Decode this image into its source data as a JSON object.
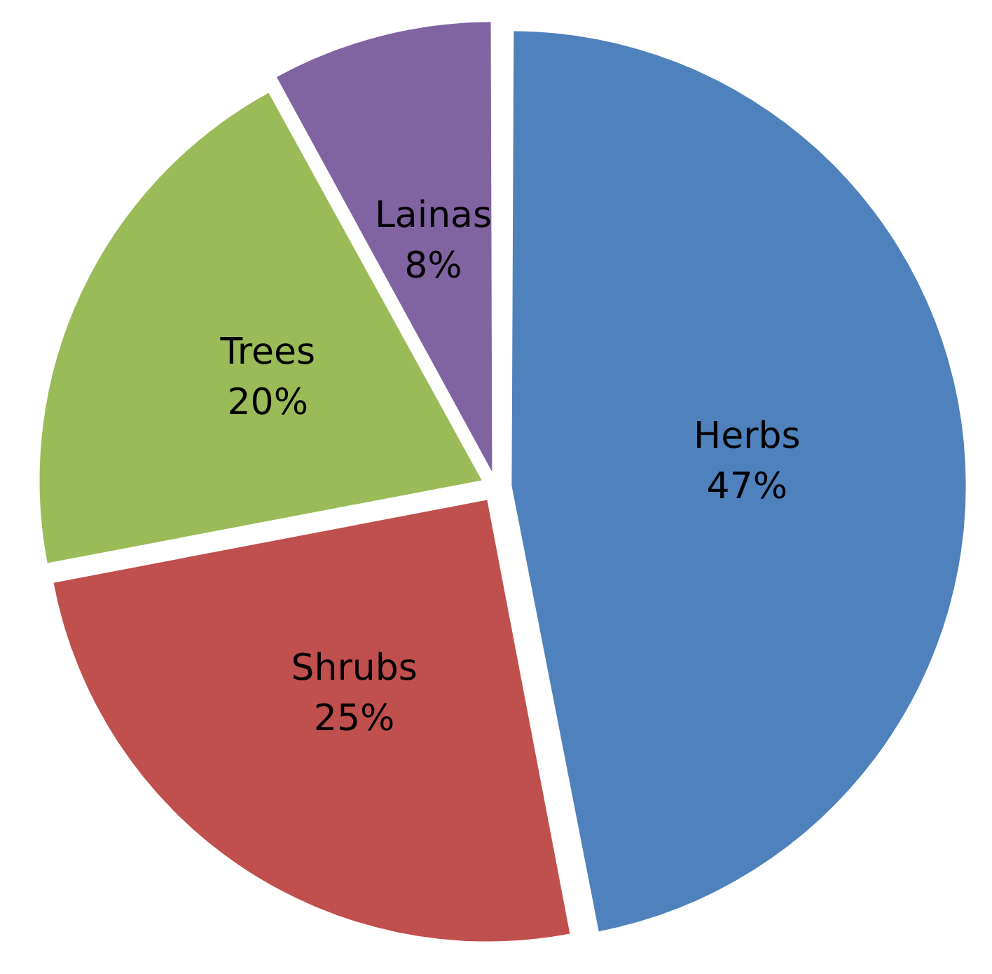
{
  "chart_data": {
    "type": "pie",
    "categories": [
      "Herbs",
      "Shrubs",
      "Trees",
      "Lainas"
    ],
    "values": [
      47,
      25,
      20,
      8
    ],
    "colors": [
      "#4f81bd",
      "#c0504d",
      "#9bbb59",
      "#8064a2"
    ],
    "value_labels": [
      "47%",
      "25%",
      "20%",
      "8%"
    ],
    "legend": false
  }
}
